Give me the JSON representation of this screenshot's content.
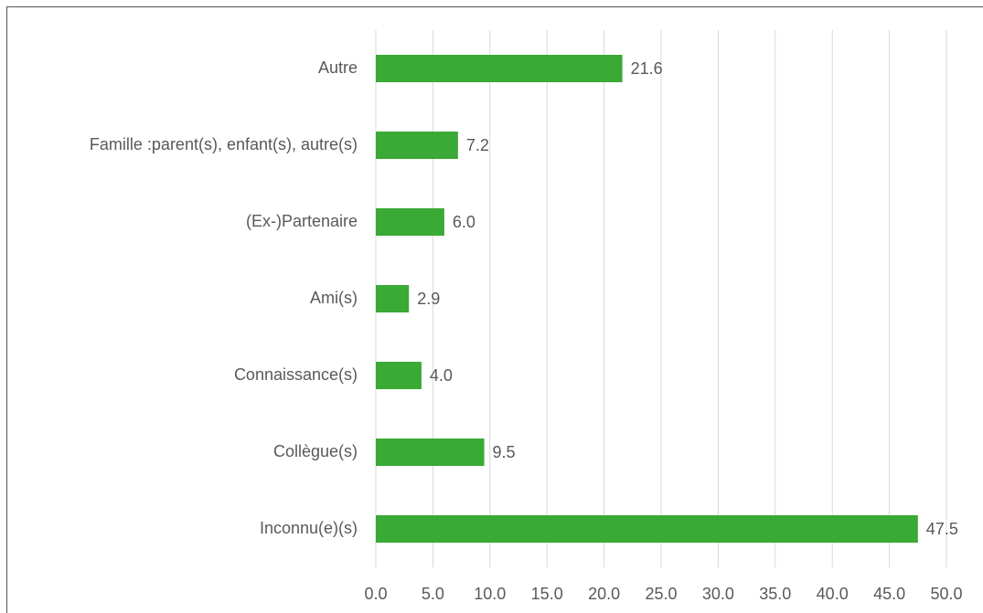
{
  "chart_data": {
    "type": "barh",
    "categories": [
      "Autre",
      "Famille :parent(s), enfant(s), autre(s)",
      "(Ex-)Partenaire",
      "Ami(s)",
      "Connaissance(s)",
      "Collègue(s)",
      "Inconnu(e)(s)"
    ],
    "values": [
      21.6,
      7.2,
      6.0,
      2.9,
      4.0,
      9.5,
      47.5
    ],
    "value_labels": [
      "21.6",
      "7.2",
      "6.0",
      "2.9",
      "4.0",
      "9.5",
      "47.5"
    ],
    "color": "#3aa935",
    "xlim": [
      0,
      50
    ],
    "xticks": [
      {
        "value": 0,
        "label": "0.0"
      },
      {
        "value": 5,
        "label": "5.0"
      },
      {
        "value": 10,
        "label": "10.0"
      },
      {
        "value": 15,
        "label": "15.0"
      },
      {
        "value": 20,
        "label": "20.0"
      },
      {
        "value": 25,
        "label": "25.0"
      },
      {
        "value": 30,
        "label": "30.0"
      },
      {
        "value": 35,
        "label": "35.0"
      },
      {
        "value": 40,
        "label": "40.0"
      },
      {
        "value": 45,
        "label": "45.0"
      },
      {
        "value": 50,
        "label": "50.0"
      }
    ],
    "grid": true
  }
}
